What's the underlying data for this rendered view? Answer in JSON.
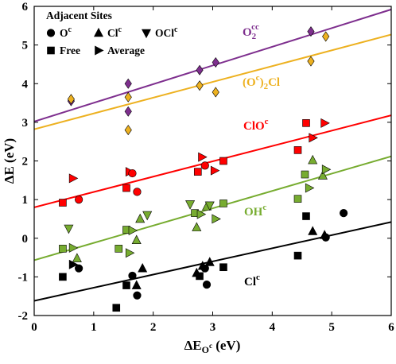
{
  "chart_data": {
    "type": "scatter",
    "xlabel": {
      "base": "ΔE",
      "sub": "O",
      "subsup": "c",
      "unit": " (eV)"
    },
    "ylabel": "ΔE (eV)",
    "xlim": [
      0,
      6
    ],
    "ylim": [
      -2,
      6
    ],
    "xticks": [
      "0",
      "1",
      "2",
      "3",
      "4",
      "5",
      "6"
    ],
    "yticks": [
      "-2",
      "-1",
      "0",
      "1",
      "2",
      "3",
      "4",
      "5",
      "6"
    ],
    "grid": false,
    "legend": {
      "placement": "top-left",
      "title": "Adjacent Sites",
      "entries": [
        {
          "marker": "circle",
          "label": "O",
          "sup": "c"
        },
        {
          "marker": "triangle-up",
          "label": "Cl",
          "sup": "c"
        },
        {
          "marker": "triangle-down",
          "label": "OCl",
          "sup": "c"
        },
        {
          "marker": "square",
          "label": "Free",
          "sup": ""
        },
        {
          "marker": "triangle-right",
          "label": "Average",
          "sup": ""
        }
      ]
    },
    "series": [
      {
        "label": {
          "base": "O",
          "sub": "2",
          "sup": "cc",
          "post": ""
        },
        "color": "#7e2f8e",
        "fit": [
          [
            0,
            3.02
          ],
          [
            6,
            5.92
          ]
        ],
        "points": [
          {
            "x": 0.62,
            "y": 3.55,
            "m": "diamond"
          },
          {
            "x": 1.58,
            "y": 3.28,
            "m": "diamond"
          },
          {
            "x": 1.58,
            "y": 4.0,
            "m": "diamond"
          },
          {
            "x": 2.78,
            "y": 4.35,
            "m": "diamond"
          },
          {
            "x": 3.05,
            "y": 4.55,
            "m": "diamond"
          },
          {
            "x": 4.65,
            "y": 5.35,
            "m": "diamond"
          }
        ]
      },
      {
        "label": {
          "base": "(O",
          "sub": "",
          "sup": "c",
          "post": ")",
          "sub2": "2",
          "post2": "Cl"
        },
        "color": "#edb120",
        "fit": [
          [
            0,
            2.82
          ],
          [
            6,
            5.27
          ]
        ],
        "points": [
          {
            "x": 0.62,
            "y": 3.6,
            "m": "diamond"
          },
          {
            "x": 1.58,
            "y": 2.8,
            "m": "diamond"
          },
          {
            "x": 1.58,
            "y": 3.65,
            "m": "diamond"
          },
          {
            "x": 2.78,
            "y": 3.95,
            "m": "diamond"
          },
          {
            "x": 3.05,
            "y": 3.78,
            "m": "diamond"
          },
          {
            "x": 4.65,
            "y": 4.58,
            "m": "diamond"
          },
          {
            "x": 4.9,
            "y": 5.22,
            "m": "diamond"
          }
        ]
      },
      {
        "label": {
          "base": "ClO",
          "sub": "",
          "sup": "c",
          "post": ""
        },
        "color": "#ff0000",
        "fit": [
          [
            0,
            0.8
          ],
          [
            6,
            3.18
          ]
        ],
        "points": [
          {
            "x": 0.48,
            "y": 0.92,
            "m": "square"
          },
          {
            "x": 0.65,
            "y": 1.55,
            "m": "triangle-right"
          },
          {
            "x": 0.75,
            "y": 1.0,
            "m": "circle"
          },
          {
            "x": 1.55,
            "y": 1.3,
            "m": "square"
          },
          {
            "x": 1.6,
            "y": 1.72,
            "m": "triangle-right"
          },
          {
            "x": 1.65,
            "y": 1.68,
            "m": "circle"
          },
          {
            "x": 1.73,
            "y": 1.2,
            "m": "circle"
          },
          {
            "x": 2.75,
            "y": 1.72,
            "m": "square"
          },
          {
            "x": 2.82,
            "y": 2.1,
            "m": "triangle-right"
          },
          {
            "x": 2.87,
            "y": 1.88,
            "m": "circle"
          },
          {
            "x": 3.03,
            "y": 1.75,
            "m": "triangle-right"
          },
          {
            "x": 3.18,
            "y": 2.0,
            "m": "square"
          },
          {
            "x": 4.43,
            "y": 2.28,
            "m": "square"
          },
          {
            "x": 4.57,
            "y": 2.98,
            "m": "square"
          },
          {
            "x": 4.68,
            "y": 2.6,
            "m": "triangle-right"
          },
          {
            "x": 4.88,
            "y": 2.98,
            "m": "triangle-right"
          }
        ]
      },
      {
        "label": {
          "base": "OH",
          "sub": "",
          "sup": "c",
          "post": ""
        },
        "color": "#77ac30",
        "fit": [
          [
            0,
            -0.57
          ],
          [
            6,
            2.12
          ]
        ],
        "points": [
          {
            "x": 0.48,
            "y": -0.27,
            "m": "square"
          },
          {
            "x": 0.58,
            "y": 0.25,
            "m": "triangle-down"
          },
          {
            "x": 0.65,
            "y": -0.25,
            "m": "triangle-right"
          },
          {
            "x": 0.72,
            "y": -0.52,
            "m": "triangle-up"
          },
          {
            "x": 1.42,
            "y": -0.27,
            "m": "square"
          },
          {
            "x": 1.55,
            "y": 0.22,
            "m": "square"
          },
          {
            "x": 1.6,
            "y": -0.38,
            "m": "triangle-right"
          },
          {
            "x": 1.65,
            "y": 0.2,
            "m": "triangle-right"
          },
          {
            "x": 1.72,
            "y": -0.05,
            "m": "triangle-up"
          },
          {
            "x": 1.78,
            "y": 0.5,
            "m": "triangle-up"
          },
          {
            "x": 1.9,
            "y": 0.6,
            "m": "triangle-down"
          },
          {
            "x": 2.62,
            "y": 0.88,
            "m": "triangle-down"
          },
          {
            "x": 2.7,
            "y": 0.65,
            "m": "square"
          },
          {
            "x": 2.73,
            "y": 0.28,
            "m": "triangle-up"
          },
          {
            "x": 2.8,
            "y": 0.62,
            "m": "triangle-right"
          },
          {
            "x": 2.9,
            "y": 0.82,
            "m": "triangle-up"
          },
          {
            "x": 2.95,
            "y": 0.85,
            "m": "triangle-down"
          },
          {
            "x": 3.05,
            "y": 0.5,
            "m": "triangle-right"
          },
          {
            "x": 3.18,
            "y": 0.9,
            "m": "square"
          },
          {
            "x": 4.43,
            "y": 1.02,
            "m": "square"
          },
          {
            "x": 4.55,
            "y": 1.65,
            "m": "square"
          },
          {
            "x": 4.62,
            "y": 1.3,
            "m": "triangle-right"
          },
          {
            "x": 4.68,
            "y": 2.02,
            "m": "triangle-up"
          },
          {
            "x": 4.85,
            "y": 1.62,
            "m": "triangle-up"
          },
          {
            "x": 4.9,
            "y": 1.78,
            "m": "triangle-right"
          }
        ]
      },
      {
        "label": {
          "base": "Cl",
          "sub": "",
          "sup": "c",
          "post": ""
        },
        "color": "#000000",
        "fit": [
          [
            0,
            -1.62
          ],
          [
            6,
            0.42
          ]
        ],
        "points": [
          {
            "x": 0.48,
            "y": -1.0,
            "m": "square"
          },
          {
            "x": 0.65,
            "y": -0.68,
            "m": "triangle-right"
          },
          {
            "x": 0.75,
            "y": -0.78,
            "m": "circle"
          },
          {
            "x": 1.38,
            "y": -1.8,
            "m": "square"
          },
          {
            "x": 1.55,
            "y": -1.22,
            "m": "square"
          },
          {
            "x": 1.65,
            "y": -0.97,
            "m": "circle"
          },
          {
            "x": 1.72,
            "y": -1.22,
            "m": "triangle-up"
          },
          {
            "x": 1.73,
            "y": -1.48,
            "m": "circle"
          },
          {
            "x": 1.82,
            "y": -0.78,
            "m": "triangle-up"
          },
          {
            "x": 2.73,
            "y": -0.9,
            "m": "triangle-up"
          },
          {
            "x": 2.78,
            "y": -0.98,
            "m": "square"
          },
          {
            "x": 2.83,
            "y": -0.72,
            "m": "triangle-up"
          },
          {
            "x": 2.87,
            "y": -0.78,
            "m": "circle"
          },
          {
            "x": 2.9,
            "y": -1.2,
            "m": "circle"
          },
          {
            "x": 2.95,
            "y": -0.62,
            "m": "triangle-up"
          },
          {
            "x": 3.18,
            "y": -0.75,
            "m": "square"
          },
          {
            "x": 4.43,
            "y": -0.45,
            "m": "square"
          },
          {
            "x": 4.57,
            "y": 0.57,
            "m": "square"
          },
          {
            "x": 4.68,
            "y": 0.18,
            "m": "triangle-up"
          },
          {
            "x": 4.88,
            "y": 0.08,
            "m": "triangle-up"
          },
          {
            "x": 4.9,
            "y": 0.02,
            "m": "circle"
          },
          {
            "x": 5.2,
            "y": 0.65,
            "m": "circle"
          }
        ]
      }
    ]
  }
}
